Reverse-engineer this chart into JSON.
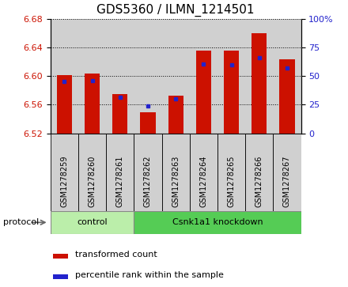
{
  "title": "GDS5360 / ILMN_1214501",
  "samples": [
    "GSM1278259",
    "GSM1278260",
    "GSM1278261",
    "GSM1278262",
    "GSM1278263",
    "GSM1278264",
    "GSM1278265",
    "GSM1278266",
    "GSM1278267"
  ],
  "red_values": [
    6.601,
    6.603,
    6.575,
    6.549,
    6.573,
    6.636,
    6.636,
    6.66,
    6.623
  ],
  "blue_values": [
    6.592,
    6.594,
    6.571,
    6.558,
    6.568,
    6.617,
    6.616,
    6.626,
    6.611
  ],
  "ylim_left": [
    6.52,
    6.68
  ],
  "ylim_right": [
    0,
    100
  ],
  "yticks_left": [
    6.52,
    6.56,
    6.6,
    6.64,
    6.68
  ],
  "yticks_right": [
    0,
    25,
    50,
    75,
    100
  ],
  "ytick_right_labels": [
    "0",
    "25",
    "50",
    "75",
    "100%"
  ],
  "base_value": 6.52,
  "control_count": 3,
  "total_count": 9,
  "group_labels": [
    "control",
    "Csnk1a1 knockdown"
  ],
  "group_color_light": "#bbeeaa",
  "group_color_dark": "#55cc55",
  "bar_color_red": "#cc1100",
  "bar_color_blue": "#2222cc",
  "bar_width": 0.55,
  "legend_entries": [
    "transformed count",
    "percentile rank within the sample"
  ],
  "col_bg_color": "#d0d0d0",
  "title_fontsize": 11,
  "tick_label_fontsize": 7,
  "protocol_fontsize": 8,
  "legend_fontsize": 8
}
